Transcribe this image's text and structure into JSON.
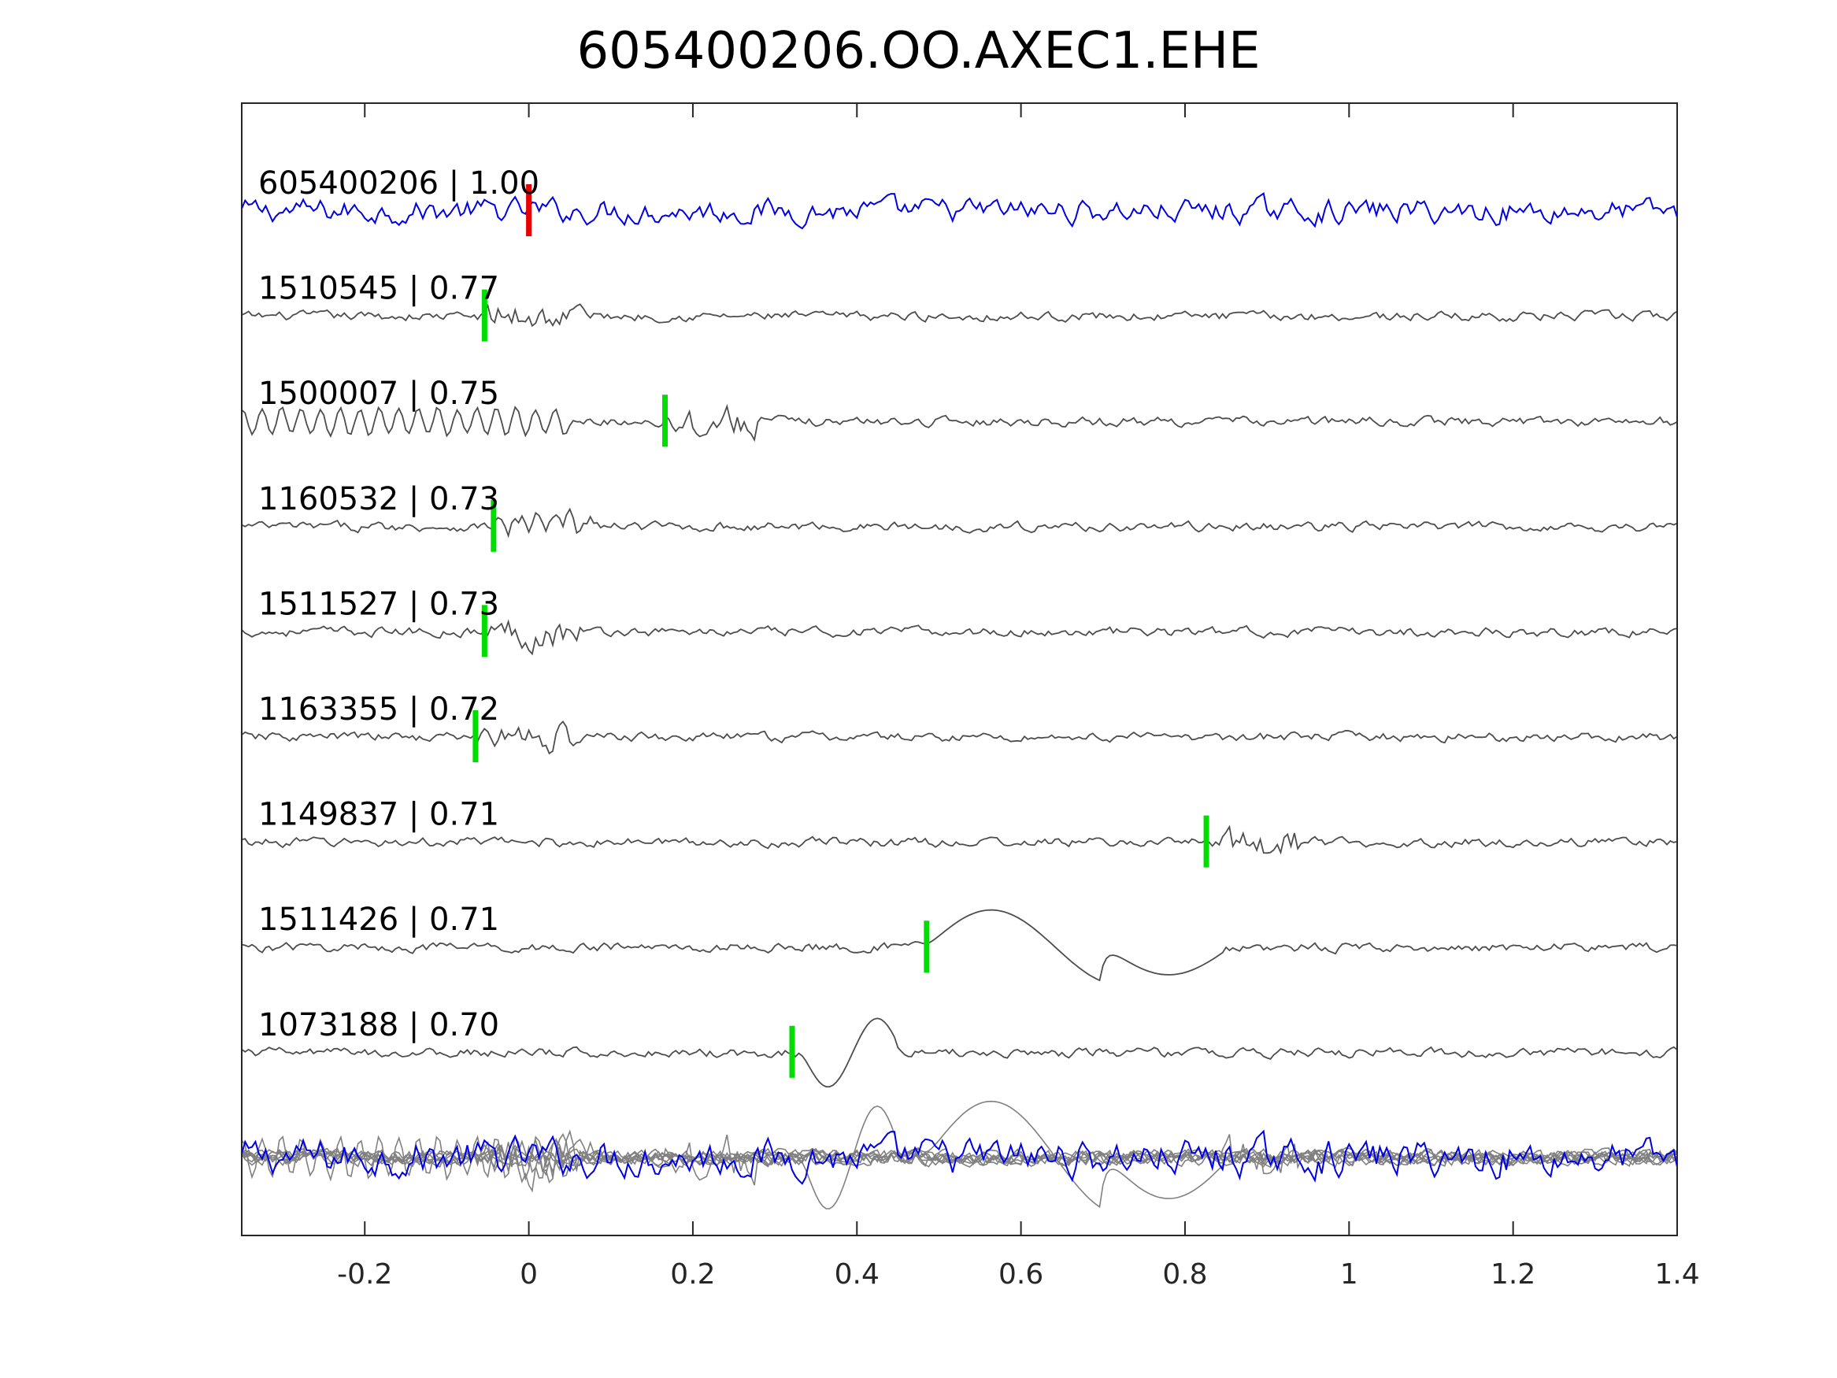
{
  "chart_data": {
    "type": "line",
    "title": "605400206.OO.AXEC1.EHE",
    "xlabel": "",
    "ylabel": "",
    "xlim": [
      -0.35,
      1.4
    ],
    "xticks": [
      -0.2,
      0,
      0.2,
      0.4,
      0.6,
      0.8,
      1,
      1.2,
      1.4
    ],
    "xtick_labels": [
      "-0.2",
      "0",
      "0.2",
      "0.4",
      "0.6",
      "0.8",
      "1",
      "1.2",
      "1.4"
    ],
    "grid": false,
    "colors": {
      "reference_trace": "#0000e6",
      "template_trace": "#4d4d4d",
      "overlay_trace": "#808080",
      "reference_pick": "#e60000",
      "match_pick": "#00dd00",
      "axes": "#262626"
    },
    "series": [
      {
        "name": "605400206 | 1.00",
        "id": "605400206",
        "cc": "1.00",
        "pick_time": 0.0,
        "role": "reference"
      },
      {
        "name": "1510545 | 0.77",
        "id": "1510545",
        "cc": "0.77",
        "pick_time": -0.054,
        "role": "match"
      },
      {
        "name": "1500007 | 0.75",
        "id": "1500007",
        "cc": "0.75",
        "pick_time": 0.166,
        "role": "match"
      },
      {
        "name": "1160532 | 0.73",
        "id": "1160532",
        "cc": "0.73",
        "pick_time": -0.043,
        "role": "match"
      },
      {
        "name": "1511527 | 0.73",
        "id": "1511527",
        "cc": "0.73",
        "pick_time": -0.054,
        "role": "match"
      },
      {
        "name": "1163355 | 0.72",
        "id": "1163355",
        "cc": "0.72",
        "pick_time": -0.065,
        "role": "match"
      },
      {
        "name": "1149837 | 0.71",
        "id": "1149837",
        "cc": "0.71",
        "pick_time": 0.826,
        "role": "match"
      },
      {
        "name": "1511426 | 0.71",
        "id": "1511426",
        "cc": "0.71",
        "pick_time": 0.485,
        "role": "match"
      },
      {
        "name": "1073188 | 0.70",
        "id": "1073188",
        "cc": "0.70",
        "pick_time": 0.321,
        "role": "match"
      }
    ]
  }
}
